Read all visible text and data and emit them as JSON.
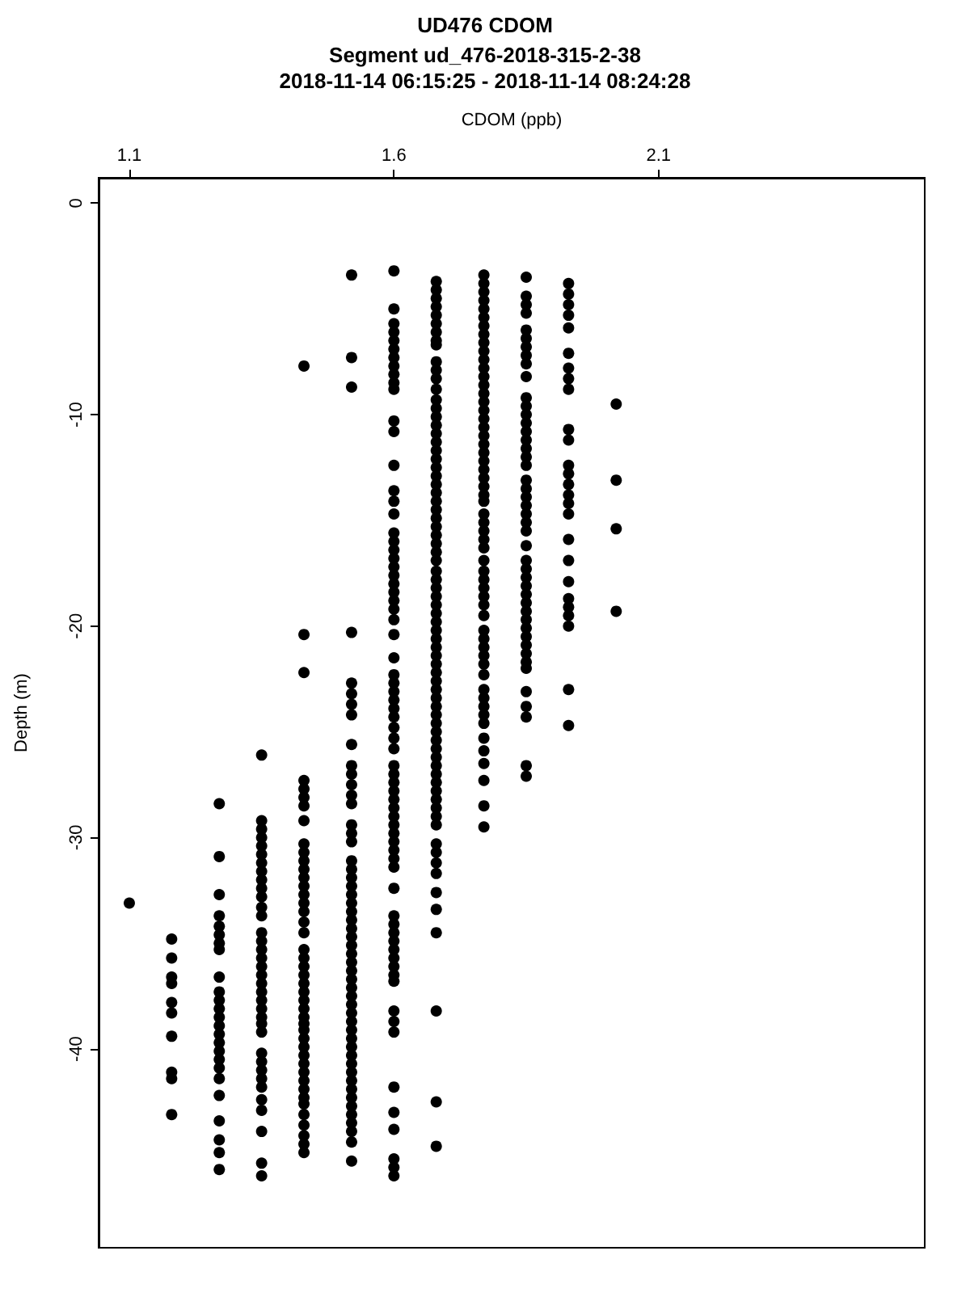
{
  "chart_data": {
    "type": "scatter",
    "title": "UD476 CDOM",
    "subtitle": "Segment ud_476-2018-315-2-38\n2018-11-14 06:15:25 - 2018-11-14 08:24:28",
    "xlabel": "CDOM (ppb)",
    "ylabel": "Depth (m)",
    "xlim": [
      1.042,
      2.603
    ],
    "xticks": [
      1.1,
      1.6,
      2.1
    ],
    "ylim": [
      -49.4,
      1.2
    ],
    "yticks": [
      0,
      -10,
      -20,
      -30,
      -40
    ],
    "grid": false,
    "marker": "circle",
    "series": [
      {
        "color": "#000000",
        "x": [
          1.1
        ],
        "values": [
          -33.1
        ]
      },
      {
        "color": "#000000",
        "x": [
          1.18,
          1.18,
          1.18,
          1.18,
          1.18,
          1.18,
          1.18,
          1.18,
          1.18,
          1.18
        ],
        "values": [
          -34.8,
          -35.7,
          -36.6,
          -36.9,
          -37.8,
          -38.3,
          -39.4,
          -41.1,
          -41.4,
          -43.1
        ]
      },
      {
        "color": "#000000",
        "x": [
          1.27,
          1.27,
          1.27,
          1.27,
          1.27,
          1.27,
          1.27,
          1.27,
          1.27,
          1.27,
          1.27,
          1.27,
          1.27,
          1.27,
          1.27,
          1.27,
          1.27,
          1.27,
          1.27,
          1.27,
          1.27,
          1.27,
          1.27,
          1.27,
          1.27
        ],
        "values": [
          -28.4,
          -30.9,
          -32.7,
          -33.7,
          -34.2,
          -34.6,
          -35.0,
          -35.3,
          -36.6,
          -37.3,
          -37.7,
          -38.1,
          -38.5,
          -38.9,
          -39.3,
          -39.7,
          -40.1,
          -40.5,
          -40.9,
          -41.4,
          -42.2,
          -43.4,
          -44.3,
          -44.9,
          -45.7
        ]
      },
      {
        "color": "#000000",
        "x": [
          1.35,
          1.35,
          1.35,
          1.35,
          1.35,
          1.35,
          1.35,
          1.35,
          1.35,
          1.35,
          1.35,
          1.35,
          1.35,
          1.35,
          1.35,
          1.35,
          1.35,
          1.35,
          1.35,
          1.35,
          1.35,
          1.35,
          1.35,
          1.35,
          1.35,
          1.35,
          1.35,
          1.35,
          1.35,
          1.35,
          1.35,
          1.35,
          1.35,
          1.35,
          1.35,
          1.35
        ],
        "values": [
          -26.1,
          -29.2,
          -29.6,
          -30.0,
          -30.4,
          -30.8,
          -31.2,
          -31.6,
          -32.0,
          -32.4,
          -32.8,
          -33.3,
          -33.7,
          -34.5,
          -34.9,
          -35.3,
          -35.7,
          -36.1,
          -36.5,
          -36.9,
          -37.3,
          -37.7,
          -38.1,
          -38.5,
          -38.8,
          -39.2,
          -40.2,
          -40.6,
          -41.0,
          -41.4,
          -41.8,
          -42.4,
          -42.9,
          -43.9,
          -45.4,
          -46.0
        ]
      },
      {
        "color": "#000000",
        "x": [
          1.43,
          1.43,
          1.43,
          1.43,
          1.43,
          1.43,
          1.43,
          1.43,
          1.43,
          1.43,
          1.43,
          1.43,
          1.43,
          1.43,
          1.43,
          1.43,
          1.43,
          1.43,
          1.43,
          1.43,
          1.43,
          1.43,
          1.43,
          1.43,
          1.43,
          1.43,
          1.43,
          1.43,
          1.43,
          1.43,
          1.43,
          1.43,
          1.43,
          1.43,
          1.43,
          1.43,
          1.43,
          1.43,
          1.43,
          1.43,
          1.43,
          1.43,
          1.43,
          1.43
        ],
        "values": [
          -7.7,
          -20.4,
          -22.2,
          -27.3,
          -27.7,
          -28.1,
          -28.5,
          -29.2,
          -30.3,
          -30.7,
          -31.1,
          -31.5,
          -31.9,
          -32.3,
          -32.7,
          -33.1,
          -33.5,
          -34.0,
          -34.5,
          -35.3,
          -35.7,
          -36.1,
          -36.5,
          -36.9,
          -37.3,
          -37.7,
          -38.1,
          -38.5,
          -38.8,
          -39.1,
          -39.5,
          -39.9,
          -40.3,
          -40.7,
          -41.1,
          -41.5,
          -41.9,
          -42.3,
          -42.6,
          -43.1,
          -43.6,
          -44.1,
          -44.5,
          -44.9
        ]
      },
      {
        "color": "#000000",
        "x": [
          1.52,
          1.52,
          1.52,
          1.52,
          1.52,
          1.52,
          1.52,
          1.52,
          1.52,
          1.52,
          1.52,
          1.52,
          1.52,
          1.52,
          1.52,
          1.52,
          1.52,
          1.52,
          1.52,
          1.52,
          1.52,
          1.52,
          1.52,
          1.52,
          1.52,
          1.52,
          1.52,
          1.52,
          1.52,
          1.52,
          1.52,
          1.52,
          1.52,
          1.52,
          1.52,
          1.52,
          1.52,
          1.52,
          1.52,
          1.52,
          1.52,
          1.52,
          1.52,
          1.52,
          1.52,
          1.52,
          1.52,
          1.52,
          1.52,
          1.52,
          1.52,
          1.52
        ],
        "values": [
          -3.4,
          -7.3,
          -8.7,
          -20.3,
          -22.7,
          -23.2,
          -23.7,
          -24.2,
          -25.6,
          -26.6,
          -27.0,
          -27.5,
          -28.0,
          -28.4,
          -29.4,
          -29.8,
          -30.2,
          -31.1,
          -31.5,
          -31.9,
          -32.3,
          -32.7,
          -33.1,
          -33.5,
          -33.9,
          -34.3,
          -34.7,
          -35.1,
          -35.5,
          -35.9,
          -36.3,
          -36.7,
          -37.1,
          -37.5,
          -37.9,
          -38.3,
          -38.7,
          -39.1,
          -39.5,
          -39.9,
          -40.3,
          -40.7,
          -41.1,
          -41.5,
          -41.9,
          -42.3,
          -42.7,
          -43.1,
          -43.5,
          -43.9,
          -44.4,
          -45.3
        ]
      },
      {
        "color": "#000000",
        "x": [
          1.6,
          1.6,
          1.6,
          1.6,
          1.6,
          1.6,
          1.6,
          1.6,
          1.6,
          1.6,
          1.6,
          1.6,
          1.6,
          1.6,
          1.6,
          1.6,
          1.6,
          1.6,
          1.6,
          1.6,
          1.6,
          1.6,
          1.6,
          1.6,
          1.6,
          1.6,
          1.6,
          1.6,
          1.6,
          1.6,
          1.6,
          1.6,
          1.6,
          1.6,
          1.6,
          1.6,
          1.6,
          1.6,
          1.6,
          1.6,
          1.6,
          1.6,
          1.6,
          1.6,
          1.6,
          1.6,
          1.6,
          1.6,
          1.6,
          1.6,
          1.6,
          1.6,
          1.6,
          1.6,
          1.6,
          1.6,
          1.6,
          1.6,
          1.6,
          1.6,
          1.6,
          1.6,
          1.6,
          1.6,
          1.6,
          1.6,
          1.6,
          1.6,
          1.6,
          1.6,
          1.6
        ],
        "values": [
          -3.2,
          -5.0,
          -5.7,
          -6.1,
          -6.5,
          -6.9,
          -7.3,
          -7.7,
          -8.1,
          -8.5,
          -8.8,
          -10.3,
          -10.8,
          -12.4,
          -13.6,
          -14.1,
          -14.7,
          -15.6,
          -16.0,
          -16.4,
          -16.8,
          -17.2,
          -17.6,
          -18.0,
          -18.4,
          -18.8,
          -19.2,
          -19.7,
          -20.4,
          -21.5,
          -22.3,
          -22.7,
          -23.1,
          -23.5,
          -23.9,
          -24.3,
          -24.8,
          -25.3,
          -25.8,
          -26.6,
          -27.0,
          -27.4,
          -27.8,
          -28.2,
          -28.6,
          -29.0,
          -29.4,
          -29.8,
          -30.2,
          -30.6,
          -31.0,
          -31.4,
          -32.4,
          -33.7,
          -34.1,
          -34.5,
          -34.9,
          -35.3,
          -35.7,
          -36.1,
          -36.5,
          -36.8,
          -38.2,
          -38.7,
          -39.2,
          -41.8,
          -43.0,
          -43.8,
          -45.2,
          -45.6,
          -46.0
        ]
      },
      {
        "color": "#000000",
        "x": [
          1.68,
          1.68,
          1.68,
          1.68,
          1.68,
          1.68,
          1.68,
          1.68,
          1.68,
          1.68,
          1.68,
          1.68,
          1.68,
          1.68,
          1.68,
          1.68,
          1.68,
          1.68,
          1.68,
          1.68,
          1.68,
          1.68,
          1.68,
          1.68,
          1.68,
          1.68,
          1.68,
          1.68,
          1.68,
          1.68,
          1.68,
          1.68,
          1.68,
          1.68,
          1.68,
          1.68,
          1.68,
          1.68,
          1.68,
          1.68,
          1.68,
          1.68,
          1.68,
          1.68,
          1.68,
          1.68,
          1.68,
          1.68,
          1.68,
          1.68,
          1.68,
          1.68,
          1.68,
          1.68,
          1.68,
          1.68,
          1.68,
          1.68,
          1.68,
          1.68,
          1.68,
          1.68,
          1.68,
          1.68,
          1.68,
          1.68,
          1.68,
          1.68,
          1.68,
          1.68,
          1.68,
          1.68,
          1.68,
          1.68
        ],
        "values": [
          -3.7,
          -4.1,
          -4.5,
          -4.9,
          -5.3,
          -5.7,
          -6.1,
          -6.5,
          -6.7,
          -7.5,
          -7.9,
          -8.3,
          -8.8,
          -9.3,
          -9.7,
          -10.1,
          -10.5,
          -10.9,
          -11.3,
          -11.7,
          -12.1,
          -12.5,
          -12.9,
          -13.3,
          -13.7,
          -14.1,
          -14.5,
          -14.9,
          -15.3,
          -15.7,
          -16.1,
          -16.5,
          -16.9,
          -17.4,
          -17.8,
          -18.2,
          -18.6,
          -19.0,
          -19.4,
          -19.8,
          -20.2,
          -20.6,
          -21.0,
          -21.4,
          -21.8,
          -22.2,
          -22.6,
          -23.0,
          -23.4,
          -23.8,
          -24.2,
          -24.6,
          -25.0,
          -25.4,
          -25.8,
          -26.2,
          -26.6,
          -27.0,
          -27.4,
          -27.8,
          -28.2,
          -28.6,
          -29.0,
          -29.4,
          -30.3,
          -30.7,
          -31.2,
          -31.7,
          -32.6,
          -33.4,
          -34.5,
          -38.2,
          -42.5,
          -44.6
        ]
      },
      {
        "color": "#000000",
        "x": [
          1.77,
          1.77,
          1.77,
          1.77,
          1.77,
          1.77,
          1.77,
          1.77,
          1.77,
          1.77,
          1.77,
          1.77,
          1.77,
          1.77,
          1.77,
          1.77,
          1.77,
          1.77,
          1.77,
          1.77,
          1.77,
          1.77,
          1.77,
          1.77,
          1.77,
          1.77,
          1.77,
          1.77,
          1.77,
          1.77,
          1.77,
          1.77,
          1.77,
          1.77,
          1.77,
          1.77,
          1.77,
          1.77,
          1.77,
          1.77,
          1.77,
          1.77,
          1.77,
          1.77,
          1.77,
          1.77,
          1.77,
          1.77,
          1.77,
          1.77,
          1.77,
          1.77,
          1.77,
          1.77,
          1.77,
          1.77,
          1.77
        ],
        "values": [
          -3.4,
          -3.8,
          -4.2,
          -4.6,
          -5.0,
          -5.4,
          -5.8,
          -6.2,
          -6.6,
          -7.0,
          -7.4,
          -7.8,
          -8.2,
          -8.6,
          -9.0,
          -9.4,
          -9.8,
          -10.2,
          -10.6,
          -11.0,
          -11.4,
          -11.8,
          -12.2,
          -12.6,
          -13.0,
          -13.4,
          -13.8,
          -14.1,
          -14.7,
          -15.1,
          -15.5,
          -15.9,
          -16.3,
          -16.9,
          -17.4,
          -17.8,
          -18.2,
          -18.6,
          -19.0,
          -19.5,
          -20.2,
          -20.6,
          -21.0,
          -21.4,
          -21.8,
          -22.3,
          -23.0,
          -23.4,
          -23.8,
          -24.2,
          -24.6,
          -25.3,
          -25.9,
          -26.5,
          -27.3,
          -28.5,
          -29.5
        ]
      },
      {
        "color": "#000000",
        "x": [
          1.85,
          1.85,
          1.85,
          1.85,
          1.85,
          1.85,
          1.85,
          1.85,
          1.85,
          1.85,
          1.85,
          1.85,
          1.85,
          1.85,
          1.85,
          1.85,
          1.85,
          1.85,
          1.85,
          1.85,
          1.85,
          1.85,
          1.85,
          1.85,
          1.85,
          1.85,
          1.85,
          1.85,
          1.85,
          1.85,
          1.85,
          1.85,
          1.85,
          1.85,
          1.85,
          1.85,
          1.85,
          1.85,
          1.85,
          1.85,
          1.85,
          1.85,
          1.85,
          1.85,
          1.85,
          1.85
        ],
        "values": [
          -3.5,
          -4.4,
          -4.8,
          -5.2,
          -6.0,
          -6.4,
          -6.8,
          -7.2,
          -7.6,
          -8.2,
          -9.2,
          -9.6,
          -10.0,
          -10.4,
          -10.8,
          -11.2,
          -11.6,
          -12.0,
          -12.4,
          -13.1,
          -13.5,
          -13.9,
          -14.3,
          -14.7,
          -15.1,
          -15.5,
          -16.2,
          -16.9,
          -17.3,
          -17.7,
          -18.1,
          -18.5,
          -18.9,
          -19.3,
          -19.7,
          -20.1,
          -20.5,
          -20.9,
          -21.3,
          -21.7,
          -22.0,
          -23.1,
          -23.8,
          -24.3,
          -26.6,
          -27.1
        ]
      },
      {
        "color": "#000000",
        "x": [
          1.93,
          1.93,
          1.93,
          1.93,
          1.93,
          1.93,
          1.93,
          1.93,
          1.93,
          1.93,
          1.93,
          1.93,
          1.93,
          1.93,
          1.93,
          1.93,
          1.93,
          1.93,
          1.93,
          1.93,
          1.93,
          1.93,
          1.93,
          1.93,
          1.93,
          1.93
        ],
        "values": [
          -3.8,
          -4.3,
          -4.8,
          -5.3,
          -5.9,
          -7.1,
          -7.8,
          -8.3,
          -8.8,
          -10.7,
          -11.2,
          -12.4,
          -12.8,
          -13.3,
          -13.8,
          -14.2,
          -14.7,
          -15.9,
          -16.9,
          -17.9,
          -18.7,
          -19.1,
          -19.5,
          -20.0,
          -23.0,
          -24.7
        ]
      },
      {
        "color": "#000000",
        "x": [
          2.02,
          2.02,
          2.02,
          2.02
        ],
        "values": [
          -9.5,
          -13.1,
          -15.4,
          -19.3
        ]
      }
    ]
  }
}
